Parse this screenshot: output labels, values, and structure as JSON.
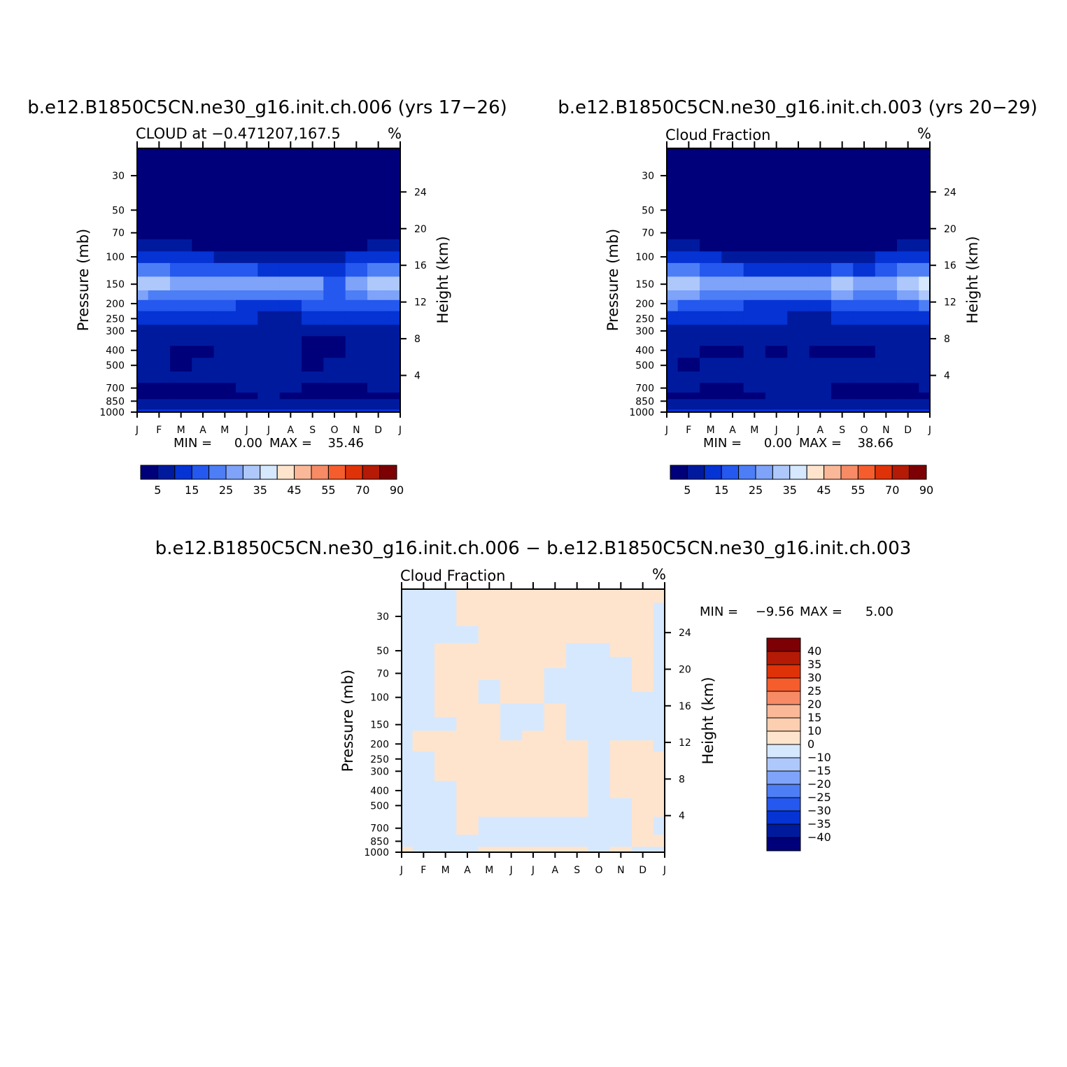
{
  "figure": {
    "months": [
      "J",
      "F",
      "M",
      "A",
      "M",
      "J",
      "J",
      "A",
      "S",
      "O",
      "N",
      "D",
      "J"
    ],
    "pressure_ticks": [
      30,
      50,
      70,
      100,
      150,
      200,
      250,
      300,
      400,
      500,
      700,
      850,
      1000
    ],
    "pressure_tick_labels": [
      "30",
      "50",
      "70",
      "100",
      "150",
      "200",
      "250",
      "300",
      "400",
      "500",
      "700",
      "850",
      "1000"
    ],
    "height_ticks": [
      4,
      8,
      12,
      16,
      20,
      24
    ],
    "height_tick_labels": [
      "4",
      "8",
      "12",
      "16",
      "20",
      "24"
    ],
    "y_label_left": "Pressure (mb)",
    "y_label_right": "Height (km)",
    "abs_colorbar": {
      "levels": [
        "5",
        "15",
        "25",
        "35",
        "45",
        "55",
        "70",
        "90"
      ],
      "colors": [
        "#00007a",
        "#001a9e",
        "#0533d4",
        "#2458ee",
        "#4d7ef6",
        "#7ea3f9",
        "#aec8fb",
        "#d6e8fe",
        "#fee4cd",
        "#fbb898",
        "#f78b66",
        "#f65d2d",
        "#e03208",
        "#b41a05",
        "#7d0005"
      ]
    },
    "diff_colorbar": {
      "labels": [
        "40",
        "35",
        "30",
        "25",
        "20",
        "15",
        "10",
        "0",
        "−10",
        "−15",
        "−20",
        "−25",
        "−30",
        "−35",
        "−40"
      ],
      "colors": [
        "#7d0005",
        "#b41a05",
        "#e03208",
        "#f65d2d",
        "#f78b66",
        "#fbb898",
        "#fccfb0",
        "#fee4cd",
        "#d6e8fe",
        "#aec8fb",
        "#7ea3f9",
        "#4d7ef6",
        "#2458ee",
        "#0533d4",
        "#001a9e",
        "#00007a"
      ]
    }
  },
  "panels": [
    {
      "title": "b.e12.B1850C5CN.ne30_g16.init.ch.006 (yrs 17−26)",
      "left_label": "CLOUD at −0.471207,167.5",
      "units": "%",
      "min_label": "MIN =",
      "min_value": "0.00",
      "max_label": "MAX =",
      "max_value": "35.46"
    },
    {
      "title": "b.e12.B1850C5CN.ne30_g16.init.ch.003 (yrs 20−29)",
      "left_label": "Cloud Fraction",
      "units": "%",
      "min_label": "MIN =",
      "min_value": "0.00",
      "max_label": "MAX =",
      "max_value": "38.66"
    },
    {
      "title": "b.e12.B1850C5CN.ne30_g16.init.ch.006 − b.e12.B1850C5CN.ne30_g16.init.ch.003",
      "left_label": "Cloud Fraction",
      "units": "%",
      "min_label": "MIN =",
      "min_value": "−9.56",
      "max_label": "MAX =",
      "max_value": "5.00"
    }
  ],
  "chart_data": [
    {
      "type": "heatmap",
      "title": "b.e12.B1850C5CN.ne30_g16.init.ch.006 (yrs 17−26)",
      "variable": "CLOUD at −0.471207,167.5",
      "units": "%",
      "x": [
        "J",
        "F",
        "M",
        "A",
        "M",
        "J",
        "J",
        "A",
        "S",
        "O",
        "N",
        "D",
        "J"
      ],
      "y_pressure_mb": [
        30,
        50,
        70,
        85,
        100,
        120,
        150,
        180,
        200,
        250,
        300,
        350,
        400,
        500,
        600,
        700,
        800,
        850,
        925,
        1000
      ],
      "ylim": [
        1000,
        20
      ],
      "values": [
        [
          0,
          0,
          0,
          0,
          0,
          0,
          0,
          0,
          0,
          0,
          0,
          0,
          0
        ],
        [
          0,
          0,
          0,
          0,
          0,
          0,
          0,
          0,
          0,
          0,
          0,
          0,
          0
        ],
        [
          1,
          1,
          1,
          1,
          1,
          1,
          1,
          1,
          1,
          1,
          1,
          1,
          1
        ],
        [
          6,
          5,
          5,
          4,
          3,
          3,
          3,
          2,
          2,
          2,
          4,
          6,
          7
        ],
        [
          13,
          12,
          11,
          10,
          9,
          8,
          8,
          8,
          7,
          8,
          11,
          13,
          14
        ],
        [
          21,
          20,
          18,
          16,
          15,
          15,
          14,
          14,
          13,
          12,
          18,
          22,
          24
        ],
        [
          32,
          31,
          25,
          28,
          28,
          28,
          28,
          28,
          27,
          18,
          27,
          32,
          34
        ],
        [
          26,
          24,
          22,
          22,
          22,
          22,
          20,
          21,
          22,
          17,
          22,
          26,
          28
        ],
        [
          19,
          17,
          16,
          16,
          15,
          14,
          13,
          14,
          15,
          15,
          16,
          18,
          19
        ],
        [
          13,
          12,
          11,
          11,
          10,
          10,
          9,
          9,
          10,
          10,
          11,
          12,
          13
        ],
        [
          8,
          7,
          7,
          7,
          6,
          6,
          7,
          6,
          6,
          7,
          7,
          8,
          8
        ],
        [
          6,
          5,
          5,
          5,
          5,
          5,
          5,
          5,
          4,
          3,
          5,
          5,
          6
        ],
        [
          6,
          5,
          3,
          3,
          5,
          6,
          6,
          6,
          3,
          3,
          5,
          6,
          6
        ],
        [
          6,
          6,
          4,
          6,
          6,
          8,
          8,
          6,
          4,
          5,
          6,
          6,
          6
        ],
        [
          6,
          6,
          6,
          6,
          6,
          6,
          6,
          6,
          5,
          5,
          6,
          6,
          6
        ],
        [
          4,
          3,
          3,
          3,
          4,
          5,
          6,
          5,
          4,
          4,
          4,
          5,
          5
        ],
        [
          4,
          3,
          3,
          3,
          3,
          4,
          5,
          4,
          3,
          3,
          4,
          4,
          4
        ],
        [
          6,
          6,
          6,
          6,
          6,
          6,
          6,
          6,
          6,
          6,
          6,
          6,
          6
        ],
        [
          9,
          9,
          9,
          9,
          8,
          8,
          8,
          8,
          8,
          8,
          9,
          9,
          9
        ],
        [
          12,
          12,
          12,
          12,
          11,
          11,
          11,
          11,
          11,
          11,
          12,
          12,
          12
        ]
      ]
    },
    {
      "type": "heatmap",
      "title": "b.e12.B1850C5CN.ne30_g16.init.ch.003 (yrs 20−29)",
      "variable": "Cloud Fraction",
      "units": "%",
      "x": [
        "J",
        "F",
        "M",
        "A",
        "M",
        "J",
        "J",
        "A",
        "S",
        "O",
        "N",
        "D",
        "J"
      ],
      "y_pressure_mb": [
        30,
        50,
        70,
        85,
        100,
        120,
        150,
        180,
        200,
        250,
        300,
        350,
        400,
        500,
        600,
        700,
        800,
        850,
        925,
        1000
      ],
      "ylim": [
        1000,
        20
      ],
      "values": [
        [
          0,
          0,
          0,
          0,
          0,
          0,
          0,
          0,
          0,
          0,
          0,
          0,
          0
        ],
        [
          0,
          0,
          0,
          0,
          0,
          0,
          0,
          0,
          0,
          0,
          0,
          0,
          0
        ],
        [
          1,
          1,
          1,
          1,
          1,
          1,
          1,
          1,
          1,
          1,
          1,
          1,
          1
        ],
        [
          6,
          5,
          4,
          4,
          3,
          3,
          3,
          3,
          3,
          3,
          4,
          6,
          7
        ],
        [
          13,
          12,
          10,
          9,
          8,
          7,
          7,
          7,
          7,
          8,
          10,
          12,
          14
        ],
        [
          22,
          20,
          17,
          15,
          14,
          13,
          13,
          14,
          15,
          14,
          18,
          22,
          24
        ],
        [
          33,
          30,
          27,
          27,
          28,
          28,
          28,
          28,
          34,
          28,
          29,
          32,
          36
        ],
        [
          29,
          26,
          23,
          23,
          22,
          21,
          20,
          21,
          26,
          22,
          23,
          28,
          30
        ],
        [
          20,
          17,
          15,
          15,
          14,
          13,
          13,
          14,
          17,
          15,
          16,
          19,
          20
        ],
        [
          13,
          12,
          11,
          11,
          10,
          10,
          9,
          9,
          10,
          10,
          11,
          12,
          13
        ],
        [
          8,
          7,
          7,
          7,
          6,
          6,
          6,
          6,
          6,
          7,
          7,
          8,
          8
        ],
        [
          6,
          5,
          5,
          5,
          5,
          5,
          5,
          5,
          5,
          5,
          5,
          5,
          6
        ],
        [
          6,
          5,
          3,
          3,
          5,
          3,
          6,
          3,
          3,
          3,
          5,
          6,
          6
        ],
        [
          6,
          4,
          5,
          5,
          6,
          5,
          6,
          6,
          5,
          5,
          6,
          6,
          6
        ],
        [
          6,
          6,
          6,
          6,
          6,
          6,
          6,
          6,
          6,
          6,
          6,
          6,
          6
        ],
        [
          5,
          5,
          4,
          3,
          5,
          6,
          6,
          6,
          4,
          3,
          3,
          4,
          5
        ],
        [
          4,
          4,
          4,
          3,
          4,
          5,
          5,
          5,
          4,
          3,
          3,
          3,
          4
        ],
        [
          6,
          6,
          6,
          6,
          6,
          6,
          6,
          6,
          6,
          6,
          6,
          6,
          6
        ],
        [
          9,
          9,
          9,
          9,
          8,
          8,
          8,
          8,
          8,
          8,
          9,
          9,
          9
        ],
        [
          12,
          12,
          12,
          12,
          11,
          11,
          11,
          11,
          11,
          11,
          12,
          12,
          12
        ]
      ]
    },
    {
      "type": "heatmap",
      "title": "b.e12.B1850C5CN.ne30_g16.init.ch.006 − b.e12.B1850C5CN.ne30_g16.init.ch.003",
      "variable": "Cloud Fraction",
      "units": "%",
      "x": [
        "J",
        "F",
        "M",
        "A",
        "M",
        "J",
        "J",
        "A",
        "S",
        "O",
        "N",
        "D",
        "J"
      ],
      "y_pressure_mb": [
        20,
        30,
        40,
        50,
        60,
        70,
        85,
        100,
        120,
        150,
        180,
        200,
        250,
        300,
        400,
        500,
        700,
        850,
        1000
      ],
      "ylim": [
        1000,
        20
      ],
      "values": [
        [
          -1,
          -1,
          -1,
          1,
          1,
          1,
          1,
          1,
          1,
          1,
          1,
          1,
          1
        ],
        [
          -1,
          -1,
          -1,
          1,
          1,
          1,
          1,
          1,
          1,
          1,
          1,
          1,
          -1
        ],
        [
          -1,
          -1,
          -1,
          -1,
          1,
          1,
          1,
          1,
          1,
          1,
          1,
          1,
          -1
        ],
        [
          -1,
          -1,
          1,
          1,
          1,
          1,
          1,
          1,
          -1,
          -1,
          1,
          1,
          -1
        ],
        [
          -1,
          -1,
          1,
          1,
          1,
          1,
          1,
          1,
          -1,
          -1,
          -1,
          1,
          -1
        ],
        [
          -1,
          -1,
          1,
          1,
          1,
          1,
          1,
          -1,
          -1,
          -1,
          -1,
          1,
          -1
        ],
        [
          -1,
          -1,
          1,
          1,
          -1,
          1,
          1,
          -1,
          -1,
          -1,
          -1,
          1,
          -1
        ],
        [
          -1,
          -1,
          1,
          1,
          -1,
          1,
          1,
          -1,
          -1,
          -1,
          -1,
          -1,
          -1
        ],
        [
          -1,
          -1,
          1,
          1,
          1,
          -1,
          -1,
          1,
          -1,
          -1,
          -1,
          -1,
          -1
        ],
        [
          -1,
          -1,
          -1,
          1,
          1,
          -1,
          -1,
          1,
          -1,
          -1,
          -1,
          -1,
          -1
        ],
        [
          -1,
          1,
          1,
          1,
          1,
          -1,
          1,
          1,
          -1,
          -1,
          -1,
          -1,
          -1
        ],
        [
          -1,
          1,
          1,
          1,
          1,
          1,
          1,
          1,
          1,
          -1,
          1,
          1,
          -1
        ],
        [
          -1,
          -1,
          1,
          1,
          1,
          1,
          1,
          1,
          1,
          -1,
          1,
          1,
          1
        ],
        [
          -1,
          -1,
          1,
          1,
          1,
          1,
          1,
          1,
          1,
          -1,
          1,
          1,
          1
        ],
        [
          -1,
          -1,
          -1,
          1,
          1,
          1,
          1,
          1,
          1,
          -1,
          1,
          1,
          1
        ],
        [
          -1,
          -1,
          -1,
          1,
          1,
          1,
          1,
          1,
          1,
          -1,
          -1,
          1,
          1
        ],
        [
          -1,
          -1,
          -1,
          1,
          -1,
          -1,
          -1,
          -1,
          -1,
          -1,
          -1,
          1,
          -1
        ],
        [
          -1,
          -1,
          -1,
          -1,
          -1,
          -1,
          -1,
          -1,
          -1,
          -1,
          -1,
          1,
          1
        ],
        [
          1,
          -1,
          -1,
          -1,
          1,
          1,
          1,
          1,
          1,
          -1,
          1,
          -1,
          -1
        ]
      ]
    }
  ]
}
